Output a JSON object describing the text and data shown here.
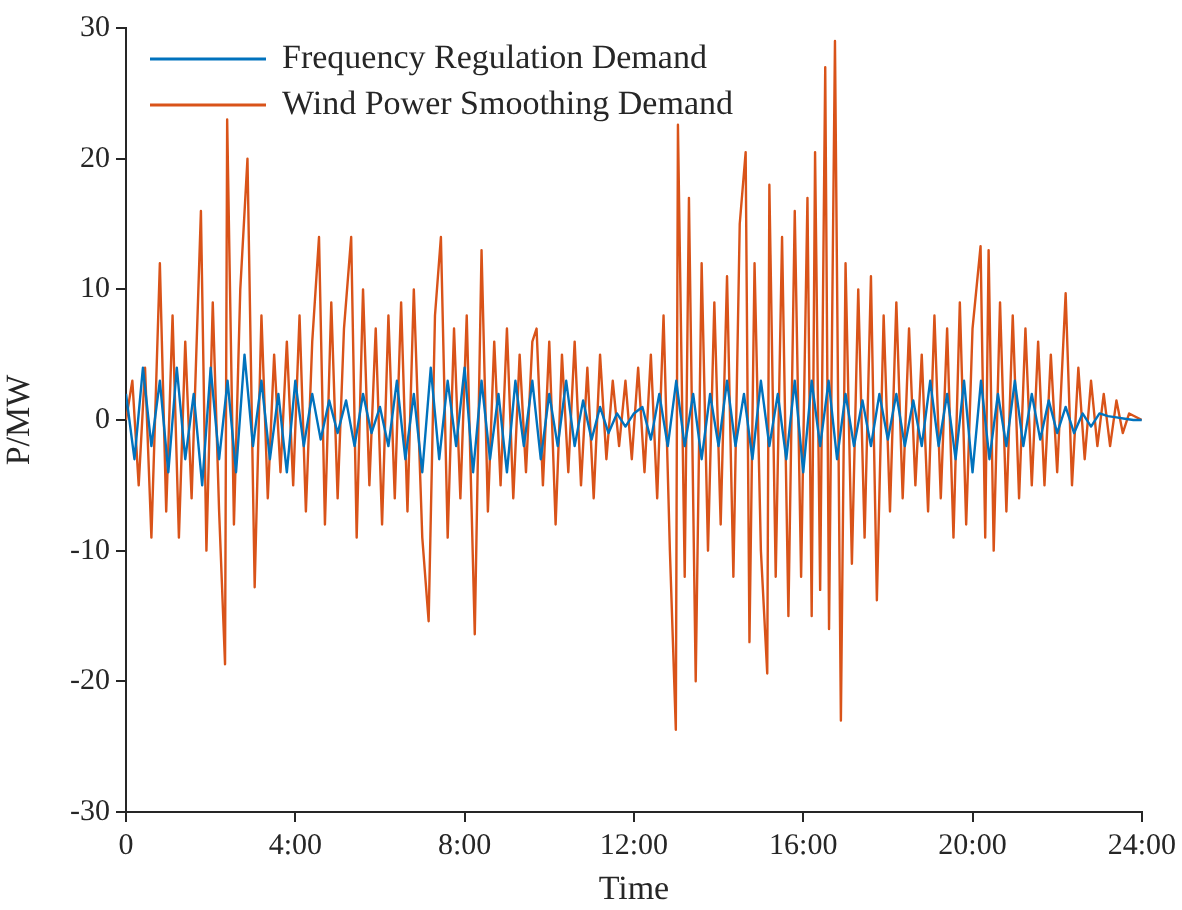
{
  "chart_data": {
    "type": "line",
    "xlabel": "Time",
    "ylabel": "P/MW",
    "legend": "top left",
    "marker": "none",
    "line_style": "solid",
    "xlim": [
      0,
      24
    ],
    "xticks": [
      0,
      {
        "value": 4,
        "label": "4:00"
      },
      {
        "value": 8,
        "label": "8:00"
      },
      {
        "value": 12,
        "label": "12:00"
      },
      {
        "value": 16,
        "label": "16:00"
      },
      {
        "value": 20,
        "label": "20:00"
      },
      {
        "value": 24,
        "label": "24:00"
      }
    ],
    "ylim": [
      -30,
      30
    ],
    "yticks": [
      -30,
      -20,
      -10,
      0,
      10,
      20,
      30
    ],
    "series": [
      {
        "name": "Frequency Regulation Demand",
        "color": "#0072bd",
        "x": [
          0,
          0.2,
          0.4,
          0.6,
          0.8,
          1,
          1.2,
          1.4,
          1.6,
          1.8,
          2,
          2.2,
          2.4,
          2.6,
          2.8,
          3,
          3.2,
          3.4,
          3.6,
          3.8,
          4,
          4.2,
          4.4,
          4.6,
          4.8,
          5,
          5.2,
          5.4,
          5.6,
          5.8,
          6,
          6.2,
          6.4,
          6.6,
          6.8,
          7,
          7.2,
          7.4,
          7.6,
          7.8,
          8,
          8.2,
          8.4,
          8.6,
          8.8,
          9,
          9.2,
          9.4,
          9.6,
          9.8,
          10,
          10.2,
          10.4,
          10.6,
          10.8,
          11,
          11.2,
          11.4,
          11.6,
          11.8,
          12,
          12.2,
          12.4,
          12.6,
          12.8,
          13,
          13.2,
          13.4,
          13.6,
          13.8,
          14,
          14.2,
          14.4,
          14.6,
          14.8,
          15,
          15.2,
          15.4,
          15.6,
          15.8,
          16,
          16.2,
          16.4,
          16.6,
          16.8,
          17,
          17.2,
          17.4,
          17.6,
          17.8,
          18,
          18.2,
          18.4,
          18.6,
          18.8,
          19,
          19.2,
          19.4,
          19.6,
          19.8,
          20,
          20.2,
          20.4,
          20.6,
          20.8,
          21,
          21.2,
          21.4,
          21.6,
          21.8,
          22,
          22.2,
          22.4,
          22.6,
          22.8,
          23,
          23.2,
          23.4,
          23.6,
          23.8,
          24
        ],
        "values": [
          2,
          -3,
          4,
          -2,
          3,
          -4,
          4,
          -3,
          2,
          -5,
          4,
          -3,
          3,
          -4,
          5,
          -2,
          3,
          -3,
          2,
          -4,
          3,
          -2,
          2,
          -1.5,
          1.5,
          -1,
          1.5,
          -2,
          2,
          -1,
          1,
          -2,
          3,
          -3,
          2,
          -4,
          4,
          -3,
          3,
          -2,
          4,
          -4,
          3,
          -3,
          2,
          -4,
          3,
          -2,
          3,
          -3,
          2,
          -2,
          3,
          -2,
          1.5,
          -1.5,
          1,
          -1,
          0.5,
          -0.5,
          0.5,
          1,
          -1.5,
          2,
          -2,
          3,
          -2,
          2,
          -3,
          2,
          -2,
          3,
          -2,
          2,
          -3,
          3,
          -2,
          2,
          -3,
          3,
          -4,
          3,
          -2,
          3,
          -3,
          2,
          -2,
          1.5,
          -2,
          2,
          -1.5,
          2,
          -2,
          1.5,
          -2,
          3,
          -2,
          2,
          -3,
          3,
          -4,
          3,
          -3,
          2,
          -2,
          3,
          -2,
          2,
          -1.5,
          1.5,
          -1,
          1,
          -1,
          0.5,
          -0.5,
          0.5,
          0.3,
          0.2,
          0.1,
          0,
          0
        ]
      },
      {
        "name": "Wind Power Smoothing Demand",
        "color": "#d95319",
        "x": [
          0,
          0.15,
          0.3,
          0.45,
          0.6,
          0.8,
          0.95,
          1.1,
          1.25,
          1.4,
          1.55,
          1.77,
          1.9,
          2.05,
          2.2,
          2.34,
          2.39,
          2.55,
          2.7,
          2.87,
          3.04,
          3.2,
          3.35,
          3.5,
          3.65,
          3.8,
          3.95,
          4.1,
          4.25,
          4.4,
          4.56,
          4.7,
          4.85,
          5,
          5.15,
          5.32,
          5.45,
          5.6,
          5.75,
          5.9,
          6.05,
          6.2,
          6.35,
          6.5,
          6.65,
          6.8,
          7,
          7.15,
          7.3,
          7.44,
          7.6,
          7.75,
          7.9,
          8.05,
          8.24,
          8.4,
          8.55,
          8.7,
          8.85,
          9,
          9.15,
          9.3,
          9.45,
          9.6,
          9.7,
          9.85,
          10,
          10.15,
          10.3,
          10.45,
          10.6,
          10.75,
          10.9,
          11.05,
          11.2,
          11.35,
          11.5,
          11.65,
          11.8,
          11.95,
          12.1,
          12.25,
          12.4,
          12.55,
          12.7,
          12.85,
          12.99,
          13.04,
          13.2,
          13.3,
          13.46,
          13.6,
          13.75,
          13.9,
          14.05,
          14.2,
          14.35,
          14.5,
          14.64,
          14.73,
          14.85,
          15,
          15.15,
          15.2,
          15.35,
          15.5,
          15.65,
          15.8,
          15.95,
          16.1,
          16.2,
          16.28,
          16.4,
          16.52,
          16.61,
          16.75,
          16.89,
          17,
          17.15,
          17.3,
          17.45,
          17.6,
          17.74,
          17.9,
          18.05,
          18.2,
          18.35,
          18.5,
          18.65,
          18.8,
          18.95,
          19.1,
          19.25,
          19.4,
          19.55,
          19.7,
          19.85,
          20,
          20.19,
          20.3,
          20.38,
          20.5,
          20.65,
          20.8,
          20.95,
          21.1,
          21.25,
          21.4,
          21.55,
          21.7,
          21.85,
          22,
          22.2,
          22.35,
          22.5,
          22.65,
          22.8,
          22.95,
          23.1,
          23.25,
          23.4,
          23.55,
          23.7,
          24
        ],
        "values": [
          0,
          3,
          -5,
          4,
          -9,
          12,
          -7,
          8,
          -9,
          6,
          -6,
          16,
          -10,
          9,
          -7,
          -18.7,
          23,
          -8,
          10,
          20,
          -12.8,
          8,
          -6,
          5,
          -4,
          6,
          -5,
          8,
          -7,
          6,
          14,
          -8,
          9,
          -6,
          7,
          14,
          -9,
          10,
          -5,
          7,
          -8,
          8,
          -6,
          9,
          -7,
          10,
          -9,
          -15.4,
          8,
          14,
          -9,
          7,
          -6,
          8,
          -16.4,
          13,
          -7,
          6,
          -5,
          7,
          -6,
          5,
          -4,
          6,
          7,
          -5,
          6,
          -8,
          5,
          -4,
          6,
          -5,
          4,
          -6,
          5,
          -3,
          3,
          -2,
          3,
          -3,
          4,
          -4,
          5,
          -6,
          8,
          -10,
          -23.7,
          22.6,
          -12,
          17,
          -20,
          12,
          -10,
          9,
          -8,
          11,
          -12,
          15,
          20.5,
          -17,
          12,
          -10,
          -19.4,
          18,
          -12,
          14,
          -15,
          16,
          -12,
          17,
          -15,
          20.5,
          -13,
          27,
          -16,
          29,
          -23,
          12,
          -11,
          10,
          -9,
          11,
          -13.8,
          8,
          -7,
          9,
          -6,
          7,
          -5,
          5,
          -7,
          8,
          -6,
          7,
          -9,
          9,
          -8,
          7,
          13.3,
          -9,
          13,
          -10,
          9,
          -7,
          8,
          -6,
          7,
          -5,
          6,
          -5,
          5,
          -4,
          9.7,
          -5,
          4,
          -3,
          3,
          -2,
          2,
          -2,
          1.5,
          -1,
          0.5,
          0
        ]
      }
    ]
  }
}
